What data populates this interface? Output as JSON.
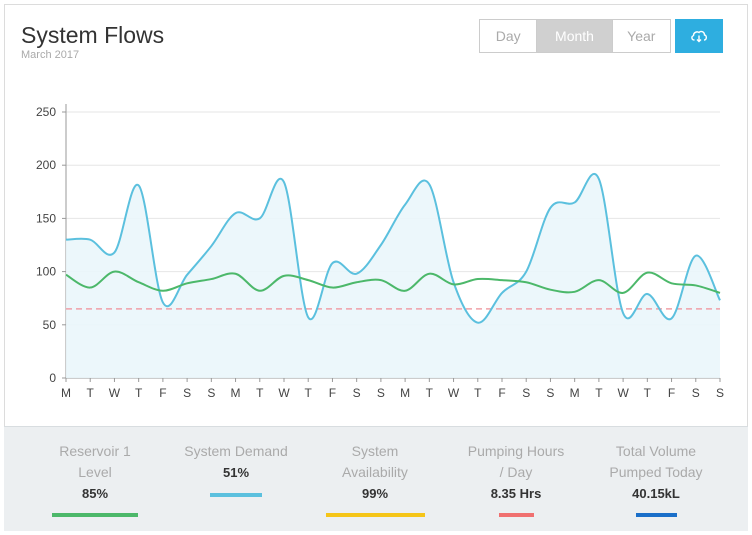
{
  "header": {
    "title": "System Flows",
    "subtitle": "March 2017"
  },
  "toolbar": {
    "periods": [
      "Day",
      "Month",
      "Year"
    ],
    "active_period": "Month",
    "download_icon": "cloud-download-icon"
  },
  "chart_data": {
    "type": "line",
    "title": "",
    "ylim": [
      0,
      250
    ],
    "yticks": [
      0,
      50,
      100,
      150,
      200,
      250
    ],
    "x": [
      "M",
      "T",
      "W",
      "T",
      "F",
      "S",
      "S",
      "M",
      "T",
      "W",
      "T",
      "F",
      "S",
      "S",
      "M",
      "T",
      "W",
      "T",
      "F",
      "S",
      "S",
      "M",
      "T",
      "W",
      "T",
      "F",
      "S",
      "S"
    ],
    "series": [
      {
        "color": "#5bc0de",
        "fill": true,
        "values": [
          130,
          130,
          118,
          181,
          71,
          97,
          124,
          155,
          150,
          184,
          57,
          108,
          98,
          125,
          163,
          182,
          90,
          52,
          80,
          100,
          160,
          165,
          187,
          61,
          79,
          56,
          115,
          73
        ]
      },
      {
        "color": "#4cb86a",
        "fill": false,
        "values": [
          97,
          85,
          100,
          90,
          82,
          89,
          93,
          98,
          82,
          96,
          92,
          85,
          90,
          92,
          82,
          98,
          88,
          93,
          92,
          90,
          83,
          81,
          92,
          80,
          99,
          89,
          87,
          80
        ]
      }
    ],
    "threshold": {
      "value": 65,
      "color": "#f0a0a8"
    },
    "grid": true
  },
  "footer": {
    "stats": [
      {
        "label": [
          "Reservoir 1",
          "Level"
        ],
        "value": "85%",
        "color": "#4cb86a"
      },
      {
        "label": [
          "System Demand"
        ],
        "value": "51%",
        "color": "#5bc0de"
      },
      {
        "label": [
          "System",
          "Availability"
        ],
        "value": "99%",
        "color": "#f5c518"
      },
      {
        "label": [
          "Pumping Hours",
          "/ Day"
        ],
        "value": "8.35 Hrs",
        "color": "#f07070"
      },
      {
        "label": [
          "Total Volume",
          "Pumped Today"
        ],
        "value": "40.15kL",
        "color": "#1a6fc9"
      }
    ]
  }
}
